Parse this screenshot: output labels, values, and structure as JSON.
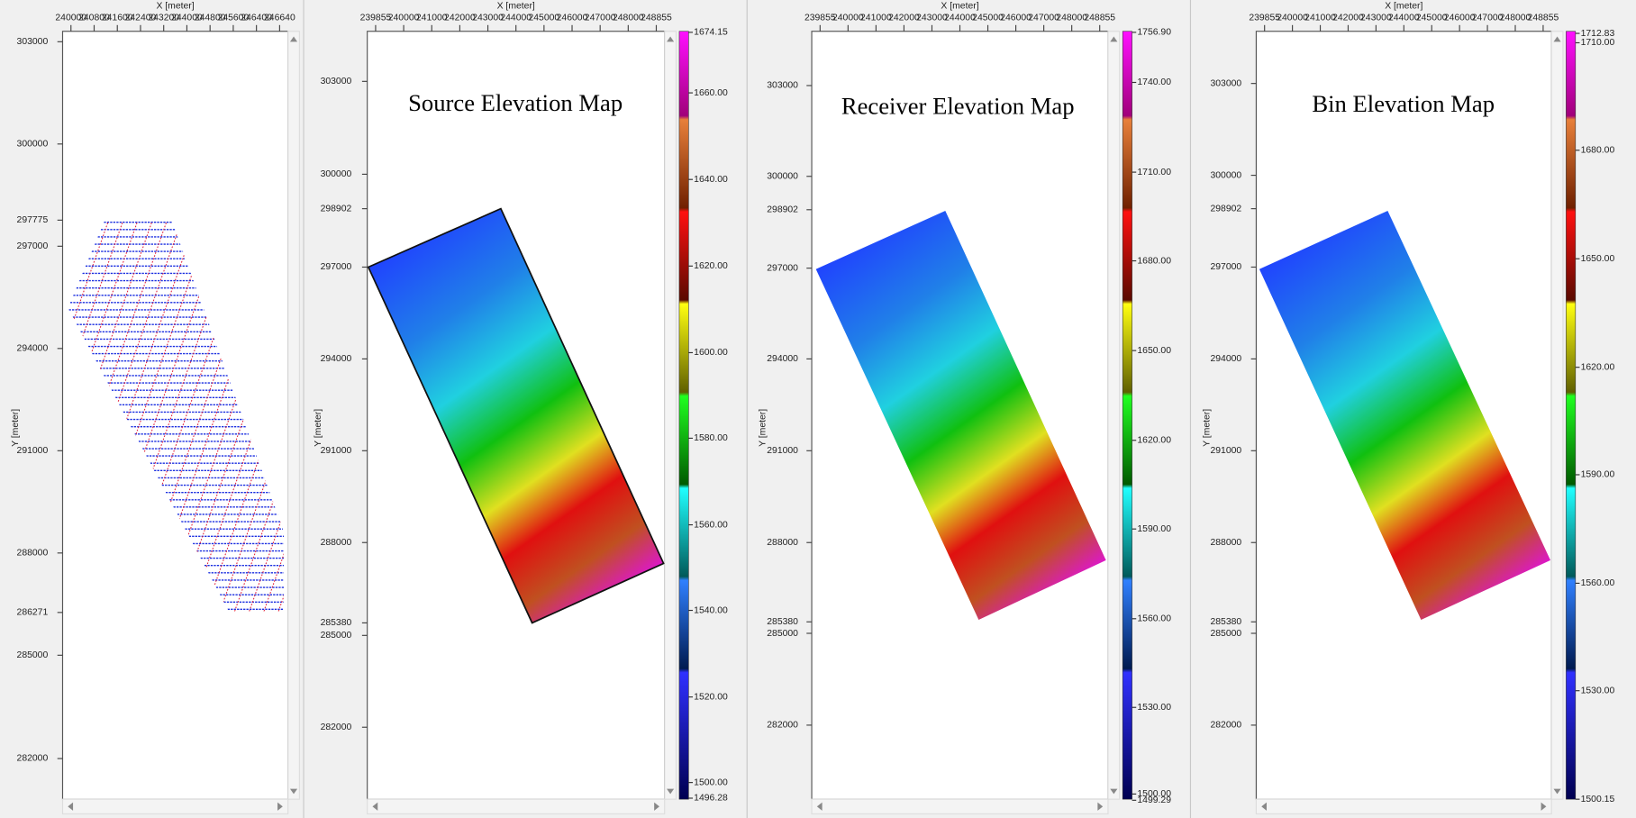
{
  "panels": [
    {
      "x_axis_title": "X [meter]",
      "y_axis_title": "Y [meter]",
      "x_ticks": [
        "240000",
        "240800",
        "241600",
        "242400",
        "243200",
        "244000",
        "244800",
        "245600",
        "246400",
        "246640"
      ],
      "y_ticks": [
        "303000",
        "300000",
        "297775",
        "297000",
        "294000",
        "291000",
        "288000",
        "286271",
        "285000",
        "282000"
      ]
    },
    {
      "title": "Source Elevation Map",
      "x_axis_title": "X [meter]",
      "y_axis_title": "Y [meter]",
      "x_ticks": [
        "239855",
        "240000",
        "241000",
        "242000",
        "243000",
        "244000",
        "245000",
        "246000",
        "247000",
        "248000",
        "248855"
      ],
      "y_ticks": [
        "303000",
        "300000",
        "298902",
        "297000",
        "294000",
        "291000",
        "288000",
        "285380",
        "285000",
        "282000"
      ],
      "colorbar_ticks": [
        "1674.15",
        "1660.00",
        "1640.00",
        "1620.00",
        "1600.00",
        "1580.00",
        "1560.00",
        "1540.00",
        "1520.00",
        "1500.00",
        "1496.28"
      ]
    },
    {
      "title": "Receiver Elevation Map",
      "x_axis_title": "X [meter]",
      "y_axis_title": "Y [meter]",
      "x_ticks": [
        "239855",
        "240000",
        "241000",
        "242000",
        "243000",
        "244000",
        "245000",
        "246000",
        "247000",
        "248000",
        "248855"
      ],
      "y_ticks": [
        "303000",
        "300000",
        "298902",
        "297000",
        "294000",
        "291000",
        "288000",
        "285380",
        "285000",
        "282000"
      ],
      "colorbar_ticks": [
        "1756.90",
        "1740.00",
        "1710.00",
        "1680.00",
        "1650.00",
        "1620.00",
        "1590.00",
        "1560.00",
        "1530.00",
        "1500.00",
        "1499.29"
      ]
    },
    {
      "title": "Bin Elevation Map",
      "x_axis_title": "X [meter]",
      "y_axis_title": "Y [meter]",
      "x_ticks": [
        "239855",
        "240000",
        "241000",
        "242000",
        "243000",
        "244000",
        "245000",
        "246000",
        "247000",
        "248000",
        "248855"
      ],
      "y_ticks": [
        "303000",
        "300000",
        "298902",
        "297000",
        "294000",
        "291000",
        "288000",
        "285380",
        "285000",
        "282000"
      ],
      "colorbar_ticks": [
        "1712.83",
        "1710.00",
        "1680.00",
        "1650.00",
        "1620.00",
        "1590.00",
        "1560.00",
        "1530.00",
        "1500.15"
      ]
    }
  ]
}
